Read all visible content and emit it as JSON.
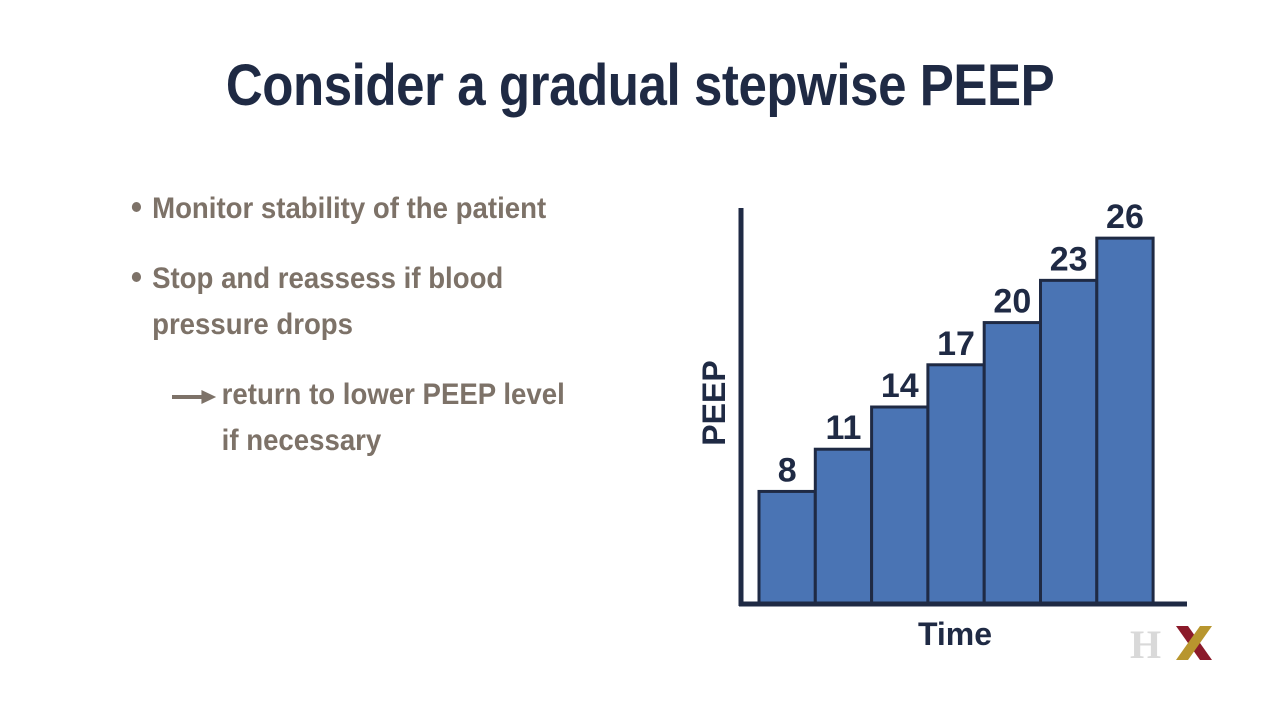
{
  "slide": {
    "title": "Consider a gradual stepwise PEEP",
    "bullets": [
      "Monitor stability of the patient",
      "Stop and reassess if blood pressure drops"
    ],
    "sub_item": {
      "icon": "right-arrow-icon",
      "text_line1": "return to lower PEEP level",
      "text_line2": "if necessary"
    }
  },
  "chart_data": {
    "type": "bar",
    "categories": [
      "",
      "",
      "",
      "",
      "",
      "",
      ""
    ],
    "values": [
      8,
      11,
      14,
      17,
      20,
      23,
      26
    ],
    "data_labels": [
      "8",
      "11",
      "14",
      "17",
      "20",
      "23",
      "26"
    ],
    "title": "",
    "xlabel": "Time",
    "ylabel": "PEEP",
    "ylim": [
      0,
      28
    ],
    "grid": false,
    "legend": "none",
    "bar_color": "#4a74b4",
    "bar_edge_color": "#1f2a44",
    "axis_color": "#1f2a44"
  },
  "logo": {
    "text": "HX",
    "colors": {
      "h": "#d9d9d9",
      "x_dark": "#8b1a2a",
      "x_gold": "#b8962e"
    }
  }
}
